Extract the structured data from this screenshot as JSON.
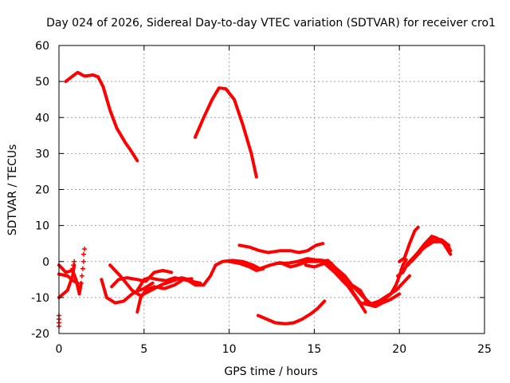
{
  "chart_data": {
    "type": "scatter",
    "title": "Day 024 of 2026, Sidereal Day-to-day VTEC variation (SDTVAR) for receiver cro1",
    "xlabel": "GPS time / hours",
    "ylabel": "SDTVAR / TECUs",
    "xlim": [
      0,
      25
    ],
    "ylim": [
      -20,
      60
    ],
    "xticks": [
      "0",
      "5",
      "10",
      "15",
      "20",
      "25"
    ],
    "yticks": [
      "-20",
      "-10",
      "0",
      "10",
      "20",
      "30",
      "40",
      "50",
      "60"
    ],
    "grid": true,
    "color": "#ff0000",
    "series": [
      {
        "name": "s1",
        "points": [
          [
            0.4,
            50
          ],
          [
            0.8,
            51.5
          ],
          [
            1.1,
            52.5
          ],
          [
            1.5,
            51.5
          ],
          [
            2.0,
            51.8
          ],
          [
            2.3,
            51.3
          ],
          [
            2.6,
            48.5
          ],
          [
            3.0,
            42
          ],
          [
            3.4,
            37
          ],
          [
            3.9,
            33
          ],
          [
            4.2,
            31
          ],
          [
            4.6,
            28
          ]
        ]
      },
      {
        "name": "s2",
        "points": [
          [
            8.0,
            34.5
          ],
          [
            8.5,
            40
          ],
          [
            9.0,
            45
          ],
          [
            9.4,
            48.2
          ],
          [
            9.8,
            48
          ],
          [
            10.3,
            45
          ],
          [
            10.8,
            38
          ],
          [
            11.3,
            30
          ],
          [
            11.6,
            23.5
          ]
        ]
      },
      {
        "name": "s3",
        "points": [
          [
            0,
            -1
          ],
          [
            0.4,
            -3
          ],
          [
            0.8,
            -2.5
          ],
          [
            1.0,
            -5
          ],
          [
            1.2,
            -9
          ],
          [
            1.3,
            -6
          ]
        ]
      },
      {
        "name": "s4",
        "points": [
          [
            0,
            -10
          ],
          [
            0.5,
            -8
          ],
          [
            0.8,
            -4
          ],
          [
            0.9,
            -1
          ]
        ]
      },
      {
        "name": "s5",
        "points": [
          [
            0,
            -3.5
          ],
          [
            0.5,
            -4
          ],
          [
            0.9,
            -5.5
          ],
          [
            1.1,
            -6
          ]
        ]
      },
      {
        "name": "s6",
        "points": [
          [
            2.5,
            -5
          ],
          [
            2.8,
            -10
          ],
          [
            3.3,
            -11.5
          ],
          [
            3.8,
            -11
          ],
          [
            4.3,
            -9
          ],
          [
            4.7,
            -8
          ],
          [
            5.0,
            -7.5
          ],
          [
            5.5,
            -6
          ]
        ]
      },
      {
        "name": "s7",
        "points": [
          [
            3.0,
            -1
          ],
          [
            3.6,
            -4
          ],
          [
            4.3,
            -8
          ],
          [
            4.8,
            -9.5
          ],
          [
            5.4,
            -8
          ],
          [
            6.0,
            -6.5
          ],
          [
            6.6,
            -5.5
          ],
          [
            7.2,
            -4.5
          ],
          [
            7.6,
            -5
          ]
        ]
      },
      {
        "name": "s8",
        "points": [
          [
            3.1,
            -7
          ],
          [
            3.5,
            -5
          ],
          [
            4.0,
            -4.5
          ],
          [
            4.6,
            -5
          ],
          [
            5.1,
            -5.5
          ],
          [
            5.6,
            -3
          ],
          [
            6.1,
            -2.5
          ],
          [
            6.6,
            -3
          ]
        ]
      },
      {
        "name": "s9",
        "points": [
          [
            4.6,
            -8
          ],
          [
            5.0,
            -5
          ],
          [
            5.3,
            -4.5
          ],
          [
            5.8,
            -5
          ],
          [
            6.3,
            -5.3
          ],
          [
            6.8,
            -4.5
          ],
          [
            7.3,
            -5
          ],
          [
            7.8,
            -5.5
          ],
          [
            8.3,
            -6
          ]
        ]
      },
      {
        "name": "s10",
        "points": [
          [
            4.6,
            -14
          ],
          [
            4.8,
            -10
          ],
          [
            5.1,
            -8
          ],
          [
            5.6,
            -7
          ],
          [
            6.2,
            -7.5
          ],
          [
            6.8,
            -6.5
          ],
          [
            7.3,
            -5
          ],
          [
            7.8,
            -4.8
          ]
        ]
      },
      {
        "name": "s11",
        "points": [
          [
            7.5,
            -5
          ],
          [
            8.0,
            -6.5
          ],
          [
            8.5,
            -6.5
          ],
          [
            8.9,
            -4
          ],
          [
            9.2,
            -1
          ],
          [
            9.6,
            0
          ],
          [
            10.2,
            0.3
          ],
          [
            10.8,
            0
          ],
          [
            11.4,
            -1
          ],
          [
            11.8,
            -2
          ],
          [
            12.4,
            -1
          ],
          [
            13.0,
            -0.3
          ],
          [
            13.6,
            -1.5
          ],
          [
            14.0,
            -1
          ],
          [
            14.6,
            0
          ],
          [
            15.2,
            0
          ],
          [
            15.8,
            0.3
          ],
          [
            16.3,
            -2
          ],
          [
            16.8,
            -4
          ],
          [
            17.2,
            -6.5
          ],
          [
            17.7,
            -8
          ],
          [
            18.2,
            -12
          ],
          [
            18.6,
            -12.5
          ],
          [
            19.0,
            -11.5
          ],
          [
            19.5,
            -10.5
          ],
          [
            20.0,
            -9
          ]
        ]
      },
      {
        "name": "s12",
        "points": [
          [
            10.0,
            0
          ],
          [
            10.6,
            -0.5
          ],
          [
            11.2,
            -1.5
          ],
          [
            11.6,
            -2.5
          ],
          [
            12.0,
            -2
          ]
        ]
      },
      {
        "name": "s13",
        "points": [
          [
            10.6,
            4.5
          ],
          [
            11.2,
            4
          ],
          [
            11.8,
            3
          ],
          [
            12.3,
            2.5
          ],
          [
            13.0,
            3
          ],
          [
            13.6,
            3
          ],
          [
            14.1,
            2.5
          ],
          [
            14.6,
            3
          ],
          [
            15.1,
            4.5
          ],
          [
            15.5,
            5
          ]
        ]
      },
      {
        "name": "s14",
        "points": [
          [
            11.7,
            -15
          ],
          [
            12.2,
            -16
          ],
          [
            12.7,
            -17
          ],
          [
            13.3,
            -17.3
          ],
          [
            13.8,
            -17
          ],
          [
            14.3,
            -16
          ],
          [
            14.8,
            -14.5
          ],
          [
            15.2,
            -13
          ],
          [
            15.6,
            -11
          ]
        ]
      },
      {
        "name": "s15",
        "points": [
          [
            12.8,
            -0.5
          ],
          [
            13.4,
            -0.5
          ],
          [
            14.0,
            0
          ],
          [
            14.6,
            0.8
          ],
          [
            15.0,
            0.5
          ],
          [
            15.5,
            0.3
          ],
          [
            16.0,
            -1
          ]
        ]
      },
      {
        "name": "s16",
        "points": [
          [
            14.5,
            -1
          ],
          [
            15.0,
            -1.5
          ],
          [
            15.6,
            -0.5
          ],
          [
            16.2,
            -3
          ],
          [
            16.8,
            -6
          ],
          [
            17.4,
            -7.5
          ],
          [
            17.9,
            -10
          ],
          [
            18.4,
            -12
          ]
        ]
      },
      {
        "name": "s17",
        "points": [
          [
            15.5,
            0
          ],
          [
            16.0,
            -1
          ],
          [
            16.6,
            -4
          ],
          [
            17.2,
            -8
          ],
          [
            17.7,
            -11.5
          ],
          [
            18.2,
            -12
          ],
          [
            18.8,
            -11
          ],
          [
            19.3,
            -9.5
          ],
          [
            19.8,
            -8
          ],
          [
            20.2,
            -6
          ],
          [
            20.6,
            -4
          ]
        ]
      },
      {
        "name": "s18",
        "points": [
          [
            16.0,
            -0.5
          ],
          [
            16.6,
            -5
          ],
          [
            17.0,
            -7
          ],
          [
            17.6,
            -11
          ],
          [
            18.0,
            -14
          ]
        ]
      },
      {
        "name": "s19",
        "points": [
          [
            18.0,
            -11
          ],
          [
            18.5,
            -12
          ],
          [
            19.0,
            -11
          ],
          [
            19.5,
            -9
          ],
          [
            19.8,
            -6.5
          ],
          [
            20.0,
            -4
          ],
          [
            20.2,
            -1
          ],
          [
            20.4,
            0.5
          ]
        ]
      },
      {
        "name": "s20",
        "points": [
          [
            20.0,
            0
          ],
          [
            20.3,
            1
          ],
          [
            20.6,
            5
          ],
          [
            20.9,
            8.5
          ],
          [
            21.1,
            9.5
          ]
        ]
      },
      {
        "name": "s21",
        "points": [
          [
            19.9,
            -4
          ],
          [
            20.2,
            -3
          ],
          [
            20.5,
            -0.5
          ],
          [
            21.0,
            2
          ],
          [
            21.5,
            4
          ],
          [
            22.0,
            5.5
          ],
          [
            22.5,
            5.5
          ],
          [
            22.9,
            4
          ],
          [
            23.0,
            3
          ]
        ]
      },
      {
        "name": "s22",
        "points": [
          [
            20.7,
            0
          ],
          [
            21.2,
            2.5
          ],
          [
            21.6,
            5.5
          ],
          [
            21.9,
            7
          ],
          [
            22.2,
            6.5
          ],
          [
            22.6,
            5
          ],
          [
            23.0,
            2
          ]
        ]
      },
      {
        "name": "s23",
        "points": [
          [
            20.5,
            -1
          ],
          [
            21.0,
            2
          ],
          [
            21.5,
            5
          ],
          [
            22.0,
            6.5
          ],
          [
            22.5,
            6
          ],
          [
            22.9,
            4.5
          ]
        ]
      }
    ],
    "markers": [
      {
        "name": "m1",
        "points": [
          [
            0,
            -15
          ],
          [
            0,
            -16
          ],
          [
            0,
            -17
          ],
          [
            0,
            -18
          ]
        ]
      },
      {
        "name": "m2",
        "points": [
          [
            0.8,
            -2
          ],
          [
            0.85,
            -1
          ],
          [
            0.9,
            0
          ]
        ]
      },
      {
        "name": "m3",
        "points": [
          [
            1.3,
            -6
          ],
          [
            1.35,
            -4
          ],
          [
            1.4,
            -2
          ],
          [
            1.45,
            0
          ],
          [
            1.45,
            2
          ],
          [
            1.5,
            3.5
          ]
        ]
      }
    ]
  }
}
